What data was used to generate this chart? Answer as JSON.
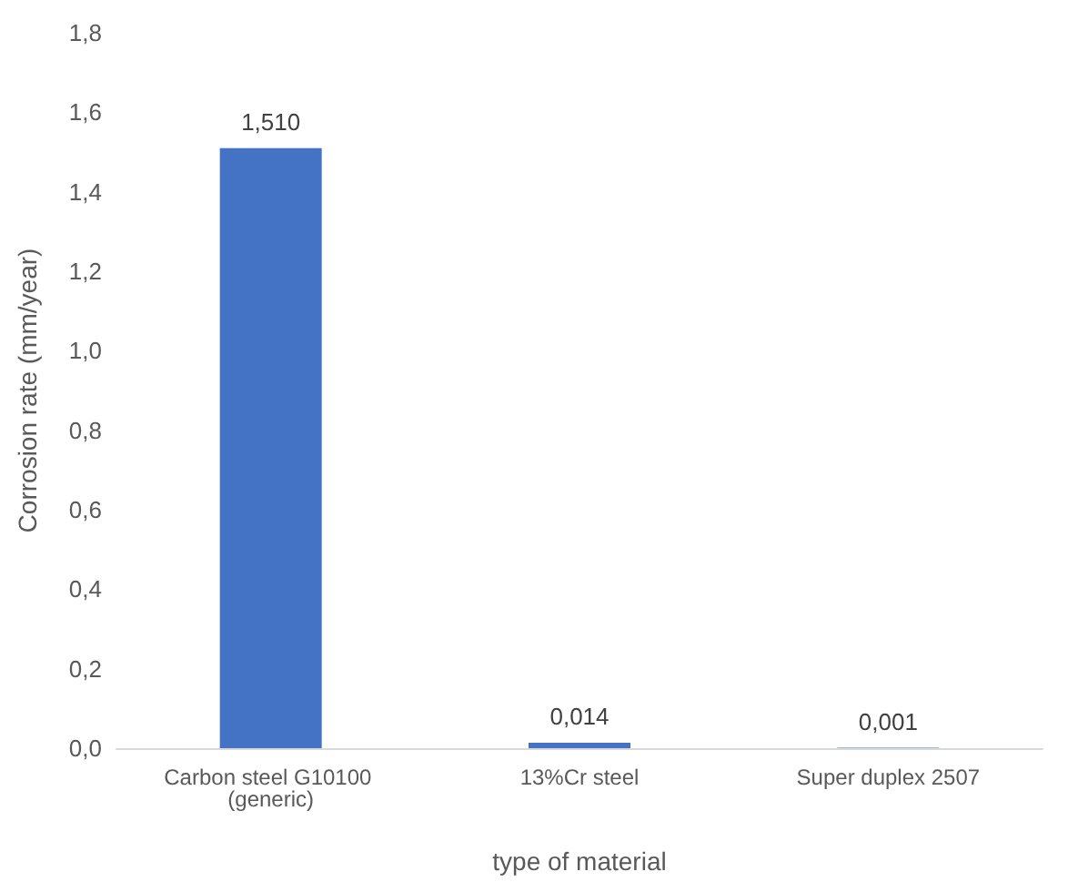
{
  "chart_data": {
    "type": "bar",
    "xlabel": "type of material",
    "ylabel": "Corrosion rate (mm/year)",
    "categories": [
      "Carbon steel G10100 (generic)",
      "13%Cr steel",
      "Super duplex 2507"
    ],
    "values": [
      1.51,
      0.014,
      0.001
    ],
    "color": "#4472c4",
    "value_labels": [
      "1,510",
      "0,014",
      "0,001"
    ],
    "ylim": [
      0,
      1.8
    ],
    "yticks": [
      {
        "value": 0,
        "label": "0,0"
      },
      {
        "value": 0.2,
        "label": "0,2"
      },
      {
        "value": 0.4,
        "label": "0,4"
      },
      {
        "value": 0.6,
        "label": "0,6"
      },
      {
        "value": 0.8,
        "label": "0,8"
      },
      {
        "value": 1.0,
        "label": "1,0"
      },
      {
        "value": 1.2,
        "label": "1,2"
      },
      {
        "value": 1.4,
        "label": "1,4"
      },
      {
        "value": 1.6,
        "label": "1,6"
      },
      {
        "value": 1.8,
        "label": "1,8"
      }
    ],
    "grid": false
  }
}
